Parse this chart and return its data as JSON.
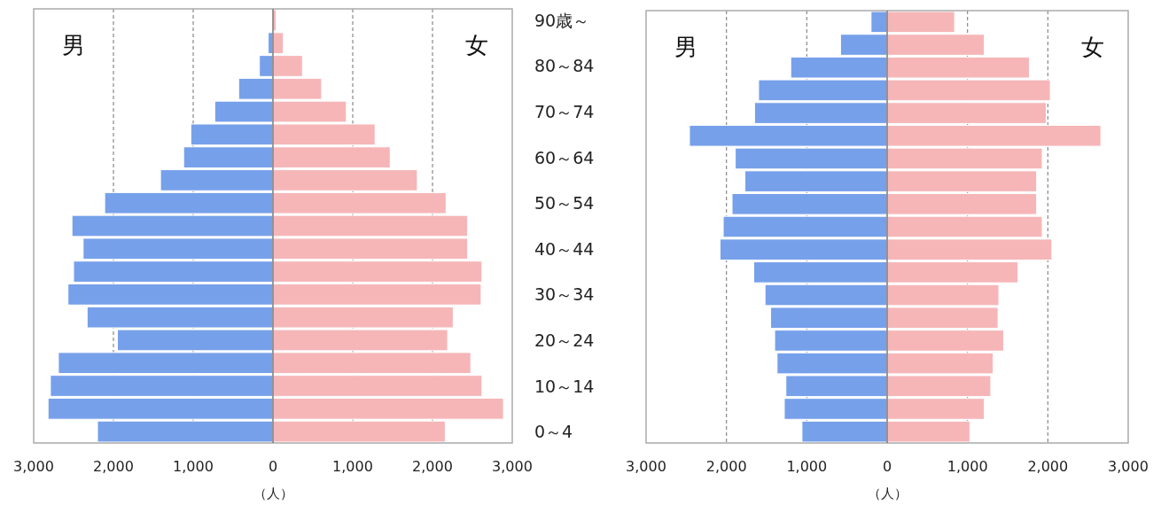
{
  "chart_data": [
    {
      "type": "bar",
      "orientation": "horizontal",
      "stacked": true,
      "xlabel": "（人）",
      "annotations": [
        "男",
        "女"
      ],
      "categories": [
        "90歳～",
        null,
        "80～84",
        null,
        "70～74",
        null,
        "60～64",
        null,
        "50～54",
        null,
        "40～44",
        null,
        "30～34",
        null,
        "20～24",
        null,
        "10～14",
        null,
        "0～4"
      ],
      "series": [
        {
          "color": "#76a0ea",
          "values": [
            null,
            -60,
            -170,
            -430,
            -730,
            -1030,
            -1120,
            -1410,
            -2110,
            -2520,
            -2380,
            -2500,
            -2570,
            -2330,
            -1950,
            -2690,
            -2790,
            -2820,
            -2200
          ]
        },
        {
          "color": "#f6b6b8",
          "values": [
            40,
            130,
            370,
            610,
            920,
            1280,
            1470,
            1810,
            2170,
            2440,
            2440,
            2620,
            2610,
            2260,
            2190,
            2480,
            2620,
            2890,
            2160
          ]
        }
      ],
      "xlim": [
        -3000,
        3000
      ],
      "xticks": [
        {
          "value": -3000,
          "label": "3,000"
        },
        {
          "value": -2000,
          "label": "2,000"
        },
        {
          "value": -1000,
          "label": "1,000"
        },
        0,
        {
          "value": 1000,
          "label": "1,000"
        },
        {
          "value": 2000,
          "label": "2,000"
        },
        {
          "value": 3000,
          "label": "3,000"
        }
      ],
      "grid": "x"
    },
    {
      "type": "bar",
      "orientation": "horizontal",
      "stacked": true,
      "xlabel": "（人）",
      "annotations": [
        "男",
        "女"
      ],
      "categories": [
        null,
        null,
        null,
        null,
        null,
        null,
        null,
        null,
        null,
        null,
        null,
        null,
        null,
        null,
        null,
        null,
        null,
        null,
        null
      ],
      "series": [
        {
          "color": "#76a0ea",
          "values": [
            -200,
            -580,
            -1200,
            -1600,
            -1650,
            -2460,
            -1890,
            -1770,
            -1930,
            -2040,
            -2080,
            -1660,
            -1520,
            -1450,
            -1400,
            -1370,
            -1260,
            -1280,
            -1060
          ]
        },
        {
          "color": "#f6b6b8",
          "values": [
            840,
            1210,
            1770,
            2030,
            1980,
            2660,
            1930,
            1860,
            1860,
            1930,
            2050,
            1630,
            1390,
            1380,
            1450,
            1320,
            1290,
            1210,
            1030
          ]
        }
      ],
      "xlim": [
        -3000,
        3000
      ],
      "xticks": [
        {
          "value": -3000,
          "label": "3,000"
        },
        {
          "value": -2000,
          "label": "2,000"
        },
        {
          "value": -1000,
          "label": "1,000"
        },
        0,
        {
          "value": 1000,
          "label": "1,000"
        },
        {
          "value": 2000,
          "label": "2,000"
        },
        {
          "value": 3000,
          "label": "3,000"
        }
      ],
      "grid": "x",
      "tick_labels": "x"
    }
  ]
}
